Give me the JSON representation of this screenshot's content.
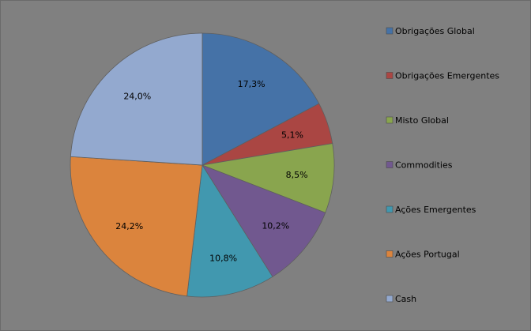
{
  "chart_data": {
    "type": "pie",
    "title": "",
    "categories": [
      "Obrigações Global",
      "Obrigações Emergentes",
      "Misto Global",
      "Commodities",
      "Ações Emergentes",
      "Ações Portugal",
      "Cash"
    ],
    "values": [
      17.3,
      5.1,
      8.5,
      10.2,
      10.8,
      24.2,
      24.0
    ],
    "value_labels": [
      "17,3%",
      "5,1%",
      "8,5%",
      "10,2%",
      "10,8%",
      "24,2%",
      "24,0%"
    ],
    "colors": [
      "#4572A7",
      "#AA4643",
      "#89A54E",
      "#71588F",
      "#4198AF",
      "#DB843D",
      "#93A9CF"
    ],
    "legend_position": "right",
    "start_angle_deg": 0,
    "direction": "clockwise"
  }
}
